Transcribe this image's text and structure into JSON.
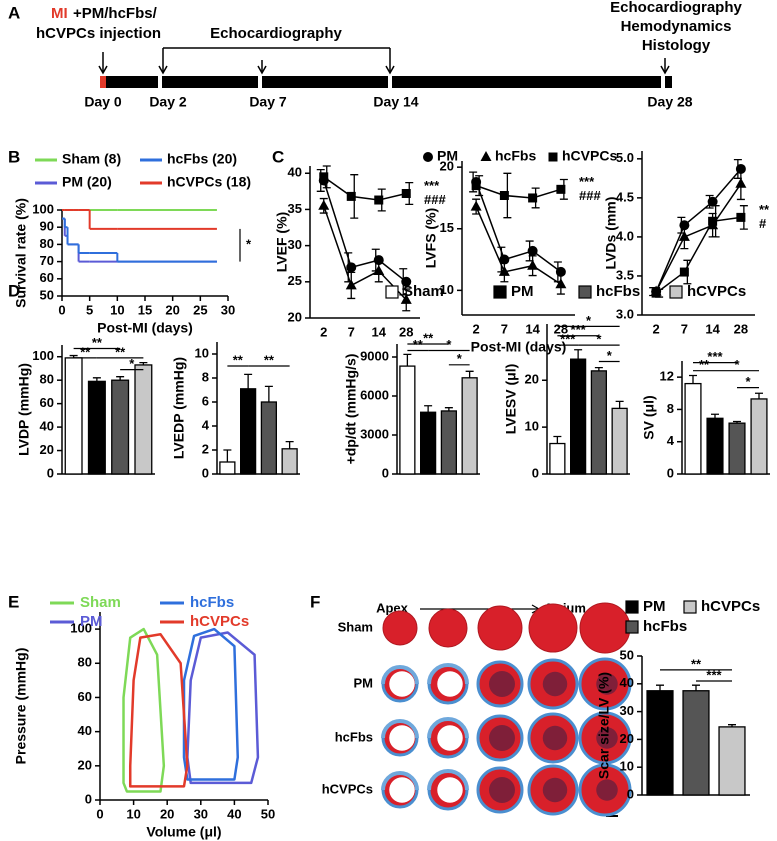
{
  "panels": [
    "A",
    "B",
    "C",
    "D",
    "E",
    "F"
  ],
  "timeline": {
    "mi": "MI",
    "injection_line1": "+PM/hcFbs/",
    "injection_line2": "hCVPCs injection",
    "echo": "Echocardiography",
    "final": [
      "Echocardiography",
      "Hemodynamics",
      "Histology"
    ],
    "days": [
      "Day 0",
      "Day 2",
      "Day 7",
      "Day 14",
      "Day 28"
    ]
  },
  "histology": {
    "start": "Apex",
    "end": "Atrium",
    "rows": [
      "Sham",
      "PM",
      "hcFbs",
      "hCVPCs"
    ]
  },
  "chart_data": [
    {
      "type": "line",
      "step": true,
      "xlabel": "Post-MI (days)",
      "ylabel": "Survival rate (%)",
      "x": [
        0,
        0.5,
        1,
        2,
        3,
        5,
        10,
        28
      ],
      "xlim": [
        0,
        30
      ],
      "xticks": [
        0,
        5,
        10,
        15,
        20,
        25,
        30
      ],
      "ylim": [
        50,
        100
      ],
      "yticks": [
        50,
        60,
        70,
        80,
        90,
        100
      ],
      "series": [
        {
          "name": "Sham (8)",
          "color": "#7ed957",
          "values": [
            100,
            100,
            100,
            100,
            100,
            100,
            100,
            100
          ]
        },
        {
          "name": "PM (20)",
          "color": "#5b5bd6",
          "values": [
            95,
            85,
            80,
            80,
            70,
            70,
            70,
            70
          ]
        },
        {
          "name": "hcFbs (20)",
          "color": "#2f6fdc",
          "values": [
            95,
            90,
            80,
            80,
            75,
            75,
            70,
            70
          ]
        },
        {
          "name": "hCVPCs (18)",
          "color": "#e23a2a",
          "values": [
            100,
            100,
            100,
            100,
            100,
            89,
            89,
            89
          ]
        }
      ],
      "annotations": [
        "*"
      ]
    },
    {
      "type": "line",
      "ylabel": "LVEF (%)",
      "categories": [
        2,
        7,
        14,
        28
      ],
      "ylim": [
        20,
        41
      ],
      "yticks": [
        20,
        25,
        30,
        35,
        40
      ],
      "series": [
        {
          "name": "PM",
          "marker": "circle",
          "color": "#000000",
          "values": [
            39,
            27,
            28,
            25
          ],
          "errors": [
            1.5,
            2,
            1.5,
            1.8
          ]
        },
        {
          "name": "hcFbs",
          "marker": "triangle",
          "color": "#000000",
          "values": [
            35.5,
            24.5,
            26.5,
            22.5
          ],
          "errors": [
            1,
            1.8,
            1.5,
            1.5
          ]
        },
        {
          "name": "hCVPCs",
          "marker": "square",
          "color": "#000000",
          "values": [
            39.5,
            36.8,
            36.3,
            37.2
          ],
          "errors": [
            1.5,
            3,
            1.5,
            1.5
          ]
        }
      ],
      "annotations": [
        "***",
        "###"
      ]
    },
    {
      "type": "line",
      "ylabel": "LVFS (%)",
      "xlabel": "Post-MI (days)",
      "categories": [
        2,
        7,
        14,
        28
      ],
      "ylim": [
        8,
        20.5
      ],
      "yticks": [
        10,
        15,
        20
      ],
      "series": [
        {
          "marker": "circle",
          "color": "#000000",
          "values": [
            18.8,
            12.5,
            13.2,
            11.5
          ],
          "errors": [
            0.8,
            1,
            0.8,
            0.8
          ]
        },
        {
          "marker": "triangle",
          "color": "#000000",
          "values": [
            16.8,
            11.5,
            12,
            10.5
          ],
          "errors": [
            0.6,
            0.8,
            0.8,
            0.8
          ]
        },
        {
          "marker": "square",
          "color": "#000000",
          "values": [
            18.5,
            17.7,
            17.5,
            18.2
          ],
          "errors": [
            0.8,
            1.8,
            0.8,
            0.8
          ]
        }
      ],
      "annotations": [
        "***",
        "###"
      ]
    },
    {
      "type": "line",
      "ylabel": "LVDs (mm)",
      "categories": [
        2,
        7,
        14,
        28
      ],
      "ylim": [
        3,
        5.1
      ],
      "yticks": [
        {
          "value": 3,
          "label": "3.0"
        },
        3.5,
        {
          "value": 4,
          "label": "4.0"
        },
        4.5,
        {
          "value": 5,
          "label": "5.0"
        }
      ],
      "series": [
        {
          "marker": "circle",
          "color": "#000000",
          "values": [
            3.3,
            4.15,
            4.45,
            4.87
          ],
          "errors": [
            0.05,
            0.1,
            0.08,
            0.12
          ]
        },
        {
          "marker": "triangle",
          "color": "#000000",
          "values": [
            3.3,
            4,
            4.15,
            4.68
          ],
          "errors": [
            0.05,
            0.15,
            0.15,
            0.2
          ]
        },
        {
          "marker": "square",
          "color": "#000000",
          "values": [
            3.28,
            3.55,
            4.2,
            4.25
          ],
          "errors": [
            0.05,
            0.15,
            0.2,
            0.15
          ]
        }
      ],
      "annotations": [
        "**",
        "#"
      ]
    },
    {
      "type": "bar",
      "ylabel": "LVDP (mmHg)",
      "categories": [
        "Sham",
        "PM",
        "hcFbs",
        "hCVPCs"
      ],
      "colors": [
        "#ffffff",
        "#000000",
        "#555555",
        "#c8c8c8"
      ],
      "values": [
        99,
        79,
        80,
        93
      ],
      "errors": [
        2,
        3,
        3,
        2
      ],
      "ylim": [
        0,
        110
      ],
      "yticks": [
        0,
        20,
        40,
        60,
        80,
        100
      ],
      "annotations": [
        "**",
        "**",
        "**",
        "*"
      ]
    },
    {
      "type": "bar",
      "ylabel": "LVEDP (mmHg)",
      "values": [
        1,
        7.1,
        6,
        2.1
      ],
      "errors": [
        1,
        1.2,
        1.3,
        0.6
      ],
      "ylim": [
        0,
        11
      ],
      "yticks": [
        0,
        2,
        4,
        6,
        8,
        10
      ],
      "annotations": [
        "**",
        "**"
      ]
    },
    {
      "type": "bar",
      "ylabel": "+dp/dt (mmHg/s)",
      "values": [
        8300,
        4750,
        4850,
        7400
      ],
      "errors": [
        900,
        500,
        250,
        500
      ],
      "ylim": [
        0,
        10000
      ],
      "yticks": [
        0,
        3000,
        6000,
        9000
      ],
      "annotations": [
        "**",
        "**",
        "*",
        "*"
      ]
    },
    {
      "type": "bar",
      "ylabel": "LVESV (μl)",
      "values": [
        6.5,
        24.5,
        22,
        14
      ],
      "errors": [
        1.5,
        2,
        0.7,
        1.5
      ],
      "ylim": [
        0,
        32
      ],
      "yticks": [
        0,
        10,
        20
      ],
      "annotations": [
        "*",
        "***",
        "***",
        "*",
        "*"
      ]
    },
    {
      "type": "bar",
      "ylabel": "SV (μl)",
      "values": [
        11.2,
        6.9,
        6.3,
        9.3
      ],
      "errors": [
        1,
        0.5,
        0.2,
        0.7
      ],
      "ylim": [
        0,
        14
      ],
      "yticks": [
        0,
        4,
        8,
        12
      ],
      "annotations": [
        "***",
        "**",
        "*",
        "*"
      ]
    },
    {
      "type": "loop",
      "xlabel": "Volume (μl)",
      "ylabel": "Pressure (mmHg)",
      "xlim": [
        0,
        50
      ],
      "xticks": [
        0,
        10,
        20,
        30,
        40,
        50
      ],
      "ylim": [
        0,
        110
      ],
      "yticks": [
        0,
        20,
        40,
        60,
        80,
        100
      ],
      "series": [
        {
          "name": "Sham",
          "color": "#7ed957",
          "x": [
            8,
            18,
            19,
            17,
            13,
            9,
            7,
            7
          ],
          "values": [
            5,
            5,
            20,
            85,
            100,
            95,
            60,
            10
          ]
        },
        {
          "name": "PM",
          "color": "#5b5bd6",
          "x": [
            27,
            45,
            47,
            46,
            38,
            30,
            27,
            26
          ],
          "values": [
            10,
            10,
            25,
            85,
            98,
            95,
            70,
            25
          ]
        },
        {
          "name": "hcFbs",
          "color": "#2f6fdc",
          "x": [
            26,
            40,
            41,
            40,
            34,
            28,
            25,
            25
          ],
          "values": [
            12,
            12,
            25,
            90,
            100,
            96,
            70,
            25
          ]
        },
        {
          "name": "hCVPCs",
          "color": "#e23a2a",
          "x": [
            9,
            25,
            26,
            24,
            18,
            12,
            10,
            9
          ],
          "values": [
            8,
            8,
            20,
            80,
            97,
            95,
            70,
            20
          ]
        }
      ]
    },
    {
      "type": "bar",
      "ylabel": "Scar size/LV (%)",
      "categories": [
        "PM",
        "hcFbs",
        "hCVPCs"
      ],
      "colors": [
        "#000000",
        "#555555",
        "#c8c8c8"
      ],
      "values": [
        37.5,
        37.5,
        24.5
      ],
      "errors": [
        2,
        2,
        0.8
      ],
      "ylim": [
        0,
        50
      ],
      "yticks": [
        0,
        10,
        20,
        30,
        40,
        50
      ],
      "annotations": [
        "**",
        "***"
      ]
    }
  ]
}
